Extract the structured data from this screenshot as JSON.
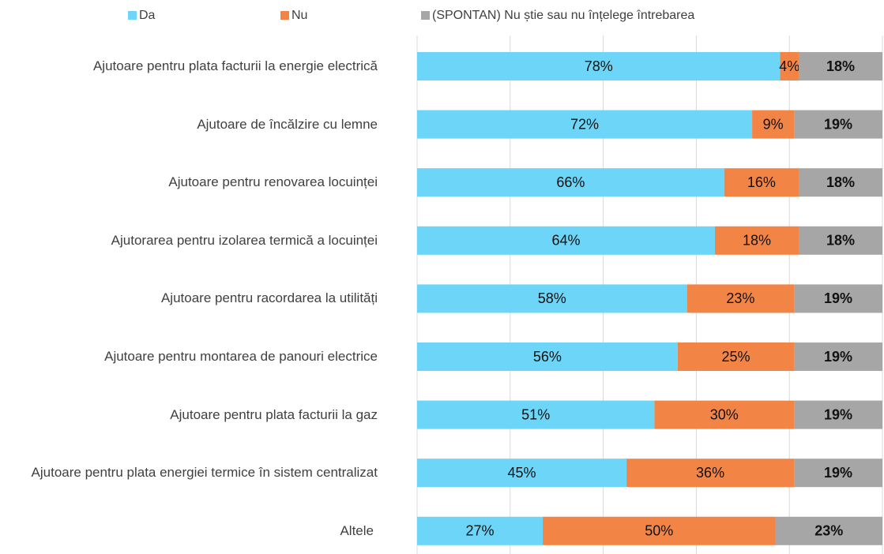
{
  "chart_data": {
    "type": "stacked_bar_horizontal",
    "categories": [
      "Ajutoare pentru plata facturii la energie electrică",
      "Ajutoare de încălzire cu lemne",
      "Ajutoare pentru renovarea locuinței",
      "Ajutorarea pentru izolarea termică a locuinței",
      "Ajutoare pentru racordarea la utilități",
      "Ajutoare pentru montarea de panouri electrice",
      "Ajutoare pentru plata facturii la gaz",
      "Ajutoare pentru plata energiei termice în sistem centralizat",
      "Altele"
    ],
    "series": [
      {
        "name": "Da",
        "color": "#6dd5f7",
        "values": [
          78,
          72,
          66,
          64,
          58,
          56,
          51,
          45,
          27
        ],
        "value_labels": [
          "78%",
          "72%",
          "66%",
          "64%",
          "58%",
          "56%",
          "51%",
          "45%",
          "27%"
        ]
      },
      {
        "name": "Nu",
        "color": "#f28546",
        "values": [
          4,
          9,
          16,
          18,
          23,
          25,
          30,
          36,
          50
        ],
        "value_labels": [
          "4%",
          "9%",
          "16%",
          "18%",
          "23%",
          "25%",
          "30%",
          "36%",
          "50%"
        ]
      },
      {
        "name": "(SPONTAN) Nu știe sau nu înțelege întrebarea",
        "color": "#a6a6a6",
        "values": [
          18,
          19,
          18,
          18,
          19,
          19,
          19,
          19,
          23
        ],
        "value_labels": [
          "18%",
          "19%",
          "18%",
          "18%",
          "19%",
          "19%",
          "19%",
          "19%",
          "23%"
        ]
      }
    ],
    "xlim": [
      0,
      100
    ],
    "xticks": [
      0,
      20,
      40,
      60,
      80,
      100
    ],
    "grid": true
  }
}
